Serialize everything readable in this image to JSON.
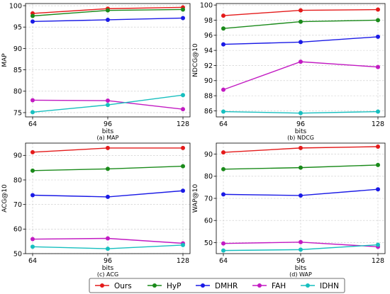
{
  "chart_data": [
    {
      "type": "line",
      "caption": "(a) MAP",
      "xlabel": "bits",
      "ylabel": "MAP",
      "x": [
        64,
        96,
        128
      ],
      "xticks": [
        64,
        96,
        128
      ],
      "ylim": [
        74,
        100.5
      ],
      "yticks": [
        75,
        80,
        85,
        90,
        95,
        100
      ],
      "grid": true,
      "series": [
        {
          "name": "Ours",
          "values": [
            98.2,
            99.3,
            99.6
          ]
        },
        {
          "name": "HyP",
          "values": [
            97.6,
            98.9,
            99.1
          ]
        },
        {
          "name": "DMHR",
          "values": [
            96.3,
            96.7,
            97.1
          ]
        },
        {
          "name": "FAH",
          "values": [
            77.9,
            77.8,
            75.8
          ]
        },
        {
          "name": "IDHN",
          "values": [
            75.1,
            76.8,
            79.1
          ]
        }
      ]
    },
    {
      "type": "line",
      "caption": "(b) NDCG",
      "xlabel": "bits",
      "ylabel": "NDCG@10",
      "x": [
        64,
        96,
        128
      ],
      "xticks": [
        64,
        96,
        128
      ],
      "ylim": [
        85.2,
        100.2
      ],
      "yticks": [
        86,
        88,
        90,
        92,
        94,
        96,
        98,
        100
      ],
      "grid": true,
      "series": [
        {
          "name": "Ours",
          "values": [
            98.6,
            99.3,
            99.4
          ]
        },
        {
          "name": "HyP",
          "values": [
            96.9,
            97.8,
            98.0
          ]
        },
        {
          "name": "DMHR",
          "values": [
            94.8,
            95.1,
            95.8
          ]
        },
        {
          "name": "FAH",
          "values": [
            88.8,
            92.5,
            91.8
          ]
        },
        {
          "name": "IDHN",
          "values": [
            85.9,
            85.7,
            85.9
          ]
        }
      ]
    },
    {
      "type": "line",
      "caption": "(c) ACG",
      "xlabel": "bits",
      "ylabel": "ACG@10",
      "x": [
        64,
        96,
        128
      ],
      "xticks": [
        64,
        96,
        128
      ],
      "ylim": [
        50,
        95
      ],
      "yticks": [
        50,
        60,
        70,
        80,
        90
      ],
      "grid": true,
      "series": [
        {
          "name": "Ours",
          "values": [
            91.3,
            93.0,
            93.0
          ]
        },
        {
          "name": "HyP",
          "values": [
            83.8,
            84.5,
            85.6
          ]
        },
        {
          "name": "DMHR",
          "values": [
            73.8,
            73.1,
            75.6
          ]
        },
        {
          "name": "FAH",
          "values": [
            55.9,
            56.2,
            54.2
          ]
        },
        {
          "name": "IDHN",
          "values": [
            52.8,
            52.0,
            53.5
          ]
        }
      ]
    },
    {
      "type": "line",
      "caption": "(d) WAP",
      "xlabel": "bits",
      "ylabel": "WAP@10",
      "x": [
        64,
        96,
        128
      ],
      "xticks": [
        64,
        96,
        128
      ],
      "ylim": [
        45,
        95
      ],
      "yticks": [
        50,
        60,
        70,
        80,
        90
      ],
      "grid": true,
      "series": [
        {
          "name": "Ours",
          "values": [
            90.8,
            92.8,
            93.4
          ]
        },
        {
          "name": "HyP",
          "values": [
            83.2,
            83.9,
            85.1
          ]
        },
        {
          "name": "DMHR",
          "values": [
            71.8,
            71.3,
            74.1
          ]
        },
        {
          "name": "FAH",
          "values": [
            49.6,
            50.2,
            48.1
          ]
        },
        {
          "name": "IDHN",
          "values": [
            46.4,
            46.8,
            49.0
          ]
        }
      ]
    }
  ],
  "legend": {
    "placement": "bottom-center",
    "entries": [
      "Ours",
      "HyP",
      "DMHR",
      "FAH",
      "IDHN"
    ]
  },
  "colors": {
    "Ours": "#e41a1a",
    "HyP": "#1a8a1a",
    "DMHR": "#1a1ae6",
    "FAH": "#c21ac2",
    "IDHN": "#17bfbf"
  }
}
